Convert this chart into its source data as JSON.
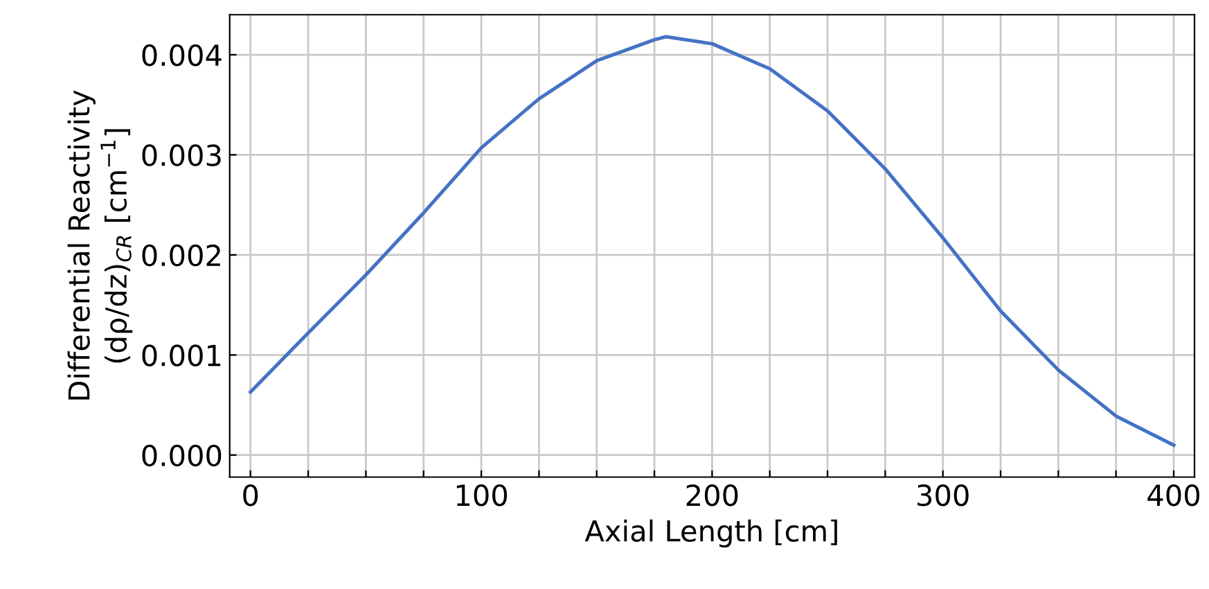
{
  "chart_data": {
    "type": "line",
    "xlabel": "Axial Length [cm]",
    "ylabel": "Differential Reactivity\n(dρ/dz)$_{CR}$ [cm$^{−1}$]",
    "x": [
      0,
      25,
      50,
      75,
      100,
      125,
      150,
      175,
      180,
      200,
      225,
      250,
      275,
      300,
      325,
      350,
      375,
      400
    ],
    "series": [
      {
        "color": "#4472c4",
        "values": [
          0.00063,
          0.00122,
          0.0018,
          0.00242,
          0.00307,
          0.00356,
          0.00394,
          0.00415,
          0.00418,
          0.00411,
          0.00386,
          0.00344,
          0.00286,
          0.00217,
          0.00144,
          0.00085,
          0.00039,
          0.0001
        ]
      }
    ],
    "xlim": [
      -9,
      409
    ],
    "ylim": [
      -0.00022,
      0.0044
    ],
    "xticks": [
      0,
      {
        "value": 25,
        "label": null
      },
      {
        "value": 50,
        "label": null
      },
      {
        "value": 75,
        "label": null
      },
      100,
      {
        "value": 125,
        "label": null
      },
      {
        "value": 150,
        "label": null
      },
      {
        "value": 175,
        "label": null
      },
      200,
      {
        "value": 225,
        "label": null
      },
      {
        "value": 250,
        "label": null
      },
      {
        "value": 275,
        "label": null
      },
      300,
      {
        "value": 325,
        "label": null
      },
      {
        "value": 350,
        "label": null
      },
      {
        "value": 375,
        "label": null
      },
      400
    ],
    "yticks": [
      {
        "value": 0,
        "label": "0.000"
      },
      {
        "value": 0.001,
        "label": "0.001"
      },
      {
        "value": 0.002,
        "label": "0.002"
      },
      {
        "value": 0.003,
        "label": "0.003"
      },
      {
        "value": 0.004,
        "label": "0.004"
      }
    ],
    "grid": true,
    "legend": false
  }
}
